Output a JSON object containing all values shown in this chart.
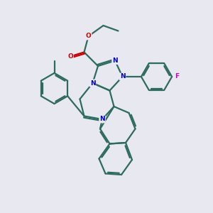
{
  "background_color": "#e8e8f0",
  "bond_color": "#2d6b5e",
  "N_color": "#0000cc",
  "O_color": "#cc0000",
  "F_color": "#cc00cc",
  "line_width": 1.6,
  "figsize": [
    3.0,
    3.0
  ],
  "dpi": 100,
  "xlim": [
    0,
    10
  ],
  "ylim": [
    0,
    10
  ]
}
